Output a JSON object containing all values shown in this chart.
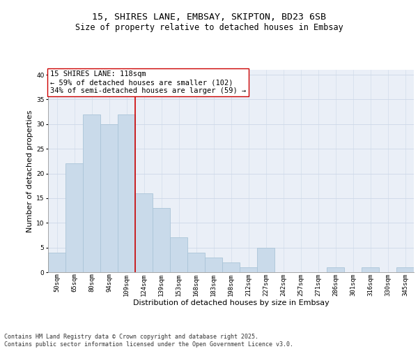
{
  "title_line1": "15, SHIRES LANE, EMBSAY, SKIPTON, BD23 6SB",
  "title_line2": "Size of property relative to detached houses in Embsay",
  "xlabel": "Distribution of detached houses by size in Embsay",
  "ylabel": "Number of detached properties",
  "categories": [
    "50sqm",
    "65sqm",
    "80sqm",
    "94sqm",
    "109sqm",
    "124sqm",
    "139sqm",
    "153sqm",
    "168sqm",
    "183sqm",
    "198sqm",
    "212sqm",
    "227sqm",
    "242sqm",
    "257sqm",
    "271sqm",
    "286sqm",
    "301sqm",
    "316sqm",
    "330sqm",
    "345sqm"
  ],
  "values": [
    4,
    22,
    32,
    30,
    32,
    16,
    13,
    7,
    4,
    3,
    2,
    1,
    5,
    0,
    0,
    0,
    1,
    0,
    1,
    0,
    1
  ],
  "bar_color": "#c9daea",
  "bar_edge_color": "#aac4d8",
  "bar_linewidth": 0.6,
  "vline_color": "#cc0000",
  "vline_linewidth": 1.2,
  "annotation_text": "15 SHIRES LANE: 118sqm\n← 59% of detached houses are smaller (102)\n34% of semi-detached houses are larger (59) →",
  "annotation_box_color": "#ffffff",
  "annotation_box_edge": "#cc0000",
  "ylim": [
    0,
    41
  ],
  "yticks": [
    0,
    5,
    10,
    15,
    20,
    25,
    30,
    35,
    40
  ],
  "grid_color": "#cdd8e8",
  "background_color": "#eaeff7",
  "footer_text": "Contains HM Land Registry data © Crown copyright and database right 2025.\nContains public sector information licensed under the Open Government Licence v3.0.",
  "title_fontsize": 9.5,
  "subtitle_fontsize": 8.5,
  "axis_label_fontsize": 8,
  "tick_fontsize": 6.5,
  "annotation_fontsize": 7.5,
  "footer_fontsize": 6.0
}
